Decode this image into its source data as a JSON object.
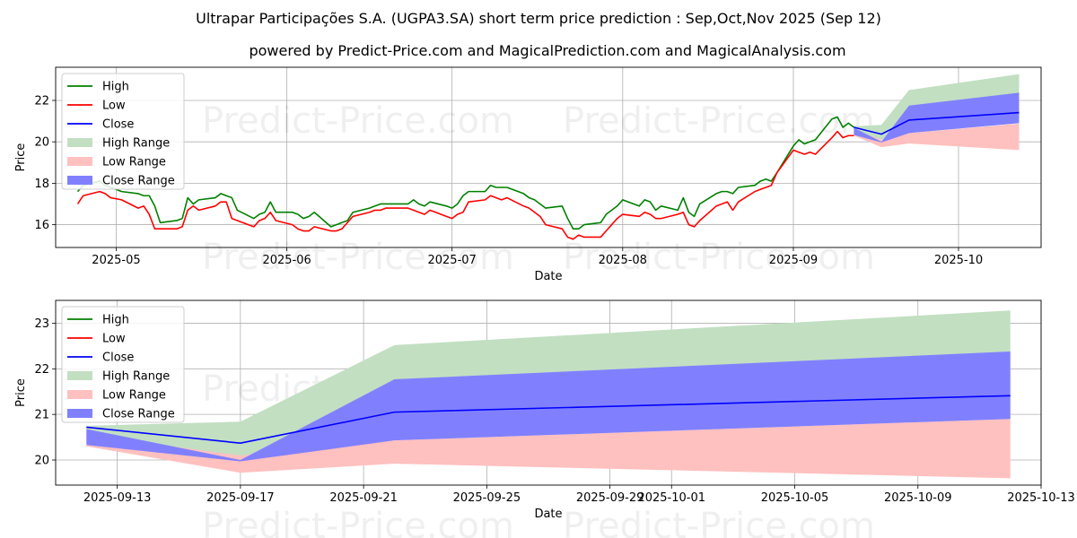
{
  "title": "Ultrapar Participações S.A. (UGPA3.SA) short term price prediction : Sep,Oct,Nov 2025 (Sep 12)",
  "subtitle": "powered by Predict-Price.com and MagicalPrediction.com and MagicalAnalysis.com",
  "watermark": "Predict-Price.com",
  "colors": {
    "high": "#008000",
    "low": "#ff0000",
    "close": "#0000ff",
    "high_range": "#c2dfc2",
    "low_range": "#ffc0c0",
    "close_range": "#8080ff",
    "grid": "#b0b0b0"
  },
  "chart_data": [
    {
      "type": "line",
      "xlabel": "Date",
      "ylabel": "Price",
      "x_type": "date",
      "xlim": [
        "2025-04-20",
        "2025-10-16"
      ],
      "ylim": [
        14.9,
        23.6
      ],
      "yticks": [
        16,
        18,
        20,
        22
      ],
      "xticks": [
        {
          "date": "2025-05-01",
          "label": "2025-05"
        },
        {
          "date": "2025-06-01",
          "label": "2025-06"
        },
        {
          "date": "2025-07-01",
          "label": "2025-07"
        },
        {
          "date": "2025-08-01",
          "label": "2025-08"
        },
        {
          "date": "2025-09-01",
          "label": "2025-09"
        },
        {
          "date": "2025-10-01",
          "label": "2025-10"
        }
      ],
      "grid": true,
      "legend": "upper left",
      "legend_labels": [
        "High",
        "Low",
        "Close",
        "High Range",
        "Low Range",
        "Close Range"
      ],
      "series": [
        {
          "name": "High",
          "x": [
            "2025-04-24",
            "2025-04-25",
            "2025-04-28",
            "2025-04-29",
            "2025-04-30",
            "2025-05-02",
            "2025-05-05",
            "2025-05-06",
            "2025-05-07",
            "2025-05-08",
            "2025-05-09",
            "2025-05-12",
            "2025-05-13",
            "2025-05-14",
            "2025-05-15",
            "2025-05-16",
            "2025-05-19",
            "2025-05-20",
            "2025-05-21",
            "2025-05-22",
            "2025-05-23",
            "2025-05-26",
            "2025-05-27",
            "2025-05-28",
            "2025-05-29",
            "2025-05-30",
            "2025-06-02",
            "2025-06-03",
            "2025-06-04",
            "2025-06-05",
            "2025-06-06",
            "2025-06-09",
            "2025-06-10",
            "2025-06-11",
            "2025-06-12",
            "2025-06-13",
            "2025-06-16",
            "2025-06-17",
            "2025-06-18",
            "2025-06-19",
            "2025-06-20",
            "2025-06-23",
            "2025-06-24",
            "2025-06-25",
            "2025-06-26",
            "2025-06-27",
            "2025-06-30",
            "2025-07-01",
            "2025-07-02",
            "2025-07-03",
            "2025-07-04",
            "2025-07-07",
            "2025-07-08",
            "2025-07-09",
            "2025-07-10",
            "2025-07-11",
            "2025-07-14",
            "2025-07-15",
            "2025-07-16",
            "2025-07-17",
            "2025-07-18",
            "2025-07-21",
            "2025-07-22",
            "2025-07-23",
            "2025-07-24",
            "2025-07-25",
            "2025-07-28",
            "2025-07-29",
            "2025-07-30",
            "2025-07-31",
            "2025-08-01",
            "2025-08-04",
            "2025-08-05",
            "2025-08-06",
            "2025-08-07",
            "2025-08-08",
            "2025-08-11",
            "2025-08-12",
            "2025-08-13",
            "2025-08-14",
            "2025-08-15",
            "2025-08-18",
            "2025-08-19",
            "2025-08-20",
            "2025-08-21",
            "2025-08-22",
            "2025-08-25",
            "2025-08-26",
            "2025-08-27",
            "2025-08-28",
            "2025-08-29",
            "2025-09-01",
            "2025-09-02",
            "2025-09-03",
            "2025-09-04",
            "2025-09-05",
            "2025-09-08",
            "2025-09-09",
            "2025-09-10",
            "2025-09-11",
            "2025-09-12"
          ],
          "values": [
            17.6,
            17.9,
            18.1,
            17.9,
            17.8,
            17.6,
            17.5,
            17.4,
            17.4,
            16.9,
            16.1,
            16.2,
            16.3,
            17.3,
            17.0,
            17.2,
            17.3,
            17.5,
            17.4,
            17.3,
            16.7,
            16.3,
            16.5,
            16.6,
            17.1,
            16.6,
            16.6,
            16.5,
            16.3,
            16.4,
            16.6,
            15.9,
            16.0,
            16.1,
            16.2,
            16.6,
            16.8,
            16.9,
            17.0,
            17.0,
            17.0,
            17.0,
            17.2,
            17.0,
            16.9,
            17.1,
            16.9,
            16.8,
            17.0,
            17.4,
            17.6,
            17.6,
            17.9,
            17.8,
            17.8,
            17.8,
            17.5,
            17.3,
            17.2,
            17.0,
            16.8,
            16.9,
            16.3,
            15.8,
            15.8,
            16.0,
            16.1,
            16.5,
            16.7,
            16.9,
            17.2,
            16.9,
            17.2,
            17.1,
            16.7,
            16.9,
            16.7,
            17.3,
            16.6,
            16.4,
            17.0,
            17.5,
            17.6,
            17.6,
            17.5,
            17.8,
            17.9,
            18.1,
            18.2,
            18.1,
            18.5,
            19.8,
            20.1,
            19.9,
            20.0,
            20.1,
            21.1,
            21.2,
            20.7,
            20.9,
            20.7
          ]
        },
        {
          "name": "Low",
          "x": [
            "2025-04-24",
            "2025-04-25",
            "2025-04-28",
            "2025-04-29",
            "2025-04-30",
            "2025-05-02",
            "2025-05-05",
            "2025-05-06",
            "2025-05-07",
            "2025-05-08",
            "2025-05-09",
            "2025-05-12",
            "2025-05-13",
            "2025-05-14",
            "2025-05-15",
            "2025-05-16",
            "2025-05-19",
            "2025-05-20",
            "2025-05-21",
            "2025-05-22",
            "2025-05-23",
            "2025-05-26",
            "2025-05-27",
            "2025-05-28",
            "2025-05-29",
            "2025-05-30",
            "2025-06-02",
            "2025-06-03",
            "2025-06-04",
            "2025-06-05",
            "2025-06-06",
            "2025-06-09",
            "2025-06-10",
            "2025-06-11",
            "2025-06-12",
            "2025-06-13",
            "2025-06-16",
            "2025-06-17",
            "2025-06-18",
            "2025-06-19",
            "2025-06-20",
            "2025-06-23",
            "2025-06-24",
            "2025-06-25",
            "2025-06-26",
            "2025-06-27",
            "2025-06-30",
            "2025-07-01",
            "2025-07-02",
            "2025-07-03",
            "2025-07-04",
            "2025-07-07",
            "2025-07-08",
            "2025-07-09",
            "2025-07-10",
            "2025-07-11",
            "2025-07-14",
            "2025-07-15",
            "2025-07-16",
            "2025-07-17",
            "2025-07-18",
            "2025-07-21",
            "2025-07-22",
            "2025-07-23",
            "2025-07-24",
            "2025-07-25",
            "2025-07-28",
            "2025-07-29",
            "2025-07-30",
            "2025-07-31",
            "2025-08-01",
            "2025-08-04",
            "2025-08-05",
            "2025-08-06",
            "2025-08-07",
            "2025-08-08",
            "2025-08-11",
            "2025-08-12",
            "2025-08-13",
            "2025-08-14",
            "2025-08-15",
            "2025-08-18",
            "2025-08-19",
            "2025-08-20",
            "2025-08-21",
            "2025-08-22",
            "2025-08-25",
            "2025-08-26",
            "2025-08-27",
            "2025-08-28",
            "2025-08-29",
            "2025-09-01",
            "2025-09-02",
            "2025-09-03",
            "2025-09-04",
            "2025-09-05",
            "2025-09-08",
            "2025-09-09",
            "2025-09-10",
            "2025-09-11",
            "2025-09-12"
          ],
          "values": [
            17.0,
            17.4,
            17.6,
            17.5,
            17.3,
            17.2,
            16.8,
            16.9,
            16.5,
            15.8,
            15.8,
            15.8,
            15.9,
            16.7,
            16.9,
            16.7,
            16.9,
            17.1,
            17.1,
            16.3,
            16.2,
            15.9,
            16.2,
            16.3,
            16.6,
            16.2,
            16.0,
            15.8,
            15.7,
            15.7,
            15.9,
            15.7,
            15.7,
            15.8,
            16.1,
            16.4,
            16.6,
            16.7,
            16.7,
            16.8,
            16.8,
            16.8,
            16.7,
            16.6,
            16.5,
            16.7,
            16.4,
            16.3,
            16.5,
            16.6,
            17.1,
            17.2,
            17.4,
            17.3,
            17.2,
            17.3,
            16.9,
            16.8,
            16.6,
            16.4,
            16.0,
            15.8,
            15.4,
            15.3,
            15.5,
            15.4,
            15.4,
            15.7,
            16.0,
            16.3,
            16.5,
            16.4,
            16.6,
            16.5,
            16.3,
            16.3,
            16.5,
            16.6,
            16.0,
            15.9,
            16.2,
            16.9,
            17.0,
            17.1,
            16.7,
            17.1,
            17.6,
            17.7,
            17.8,
            17.9,
            18.5,
            19.6,
            19.5,
            19.4,
            19.5,
            19.4,
            20.2,
            20.5,
            20.2,
            20.3,
            20.3
          ]
        },
        {
          "name": "Close",
          "x": [
            "2025-09-12",
            "2025-09-17",
            "2025-09-22",
            "2025-10-12"
          ],
          "values": [
            20.7,
            20.37,
            21.05,
            21.41
          ]
        }
      ],
      "ranges": [
        {
          "name": "High Range",
          "x": [
            "2025-09-12",
            "2025-09-17",
            "2025-09-22",
            "2025-10-12"
          ],
          "upper": [
            20.75,
            20.82,
            22.5,
            23.27
          ],
          "lower": [
            20.45,
            20.1,
            20.6,
            20.9
          ]
        },
        {
          "name": "Low Range",
          "x": [
            "2025-09-12",
            "2025-09-17",
            "2025-09-22",
            "2025-10-12"
          ],
          "upper": [
            20.55,
            20.1,
            20.42,
            20.88
          ],
          "lower": [
            20.3,
            19.74,
            19.92,
            19.6
          ]
        },
        {
          "name": "Close Range",
          "x": [
            "2025-09-12",
            "2025-09-17",
            "2025-09-22",
            "2025-10-12"
          ],
          "upper": [
            20.68,
            20.0,
            21.75,
            22.37
          ],
          "lower": [
            20.33,
            19.97,
            20.42,
            20.9
          ]
        }
      ]
    },
    {
      "type": "line",
      "xlabel": "Date",
      "ylabel": "Price",
      "x_type": "date",
      "xlim": [
        "2025-09-11",
        "2025-10-13"
      ],
      "ylim": [
        19.45,
        23.5
      ],
      "yticks": [
        20,
        21,
        22,
        23
      ],
      "xticks": [
        {
          "date": "2025-09-13",
          "label": "2025-09-13"
        },
        {
          "date": "2025-09-17",
          "label": "2025-09-17"
        },
        {
          "date": "2025-09-21",
          "label": "2025-09-21"
        },
        {
          "date": "2025-09-25",
          "label": "2025-09-25"
        },
        {
          "date": "2025-09-29",
          "label": "2025-09-29"
        },
        {
          "date": "2025-10-01",
          "label": "2025-10-01"
        },
        {
          "date": "2025-10-05",
          "label": "2025-10-05"
        },
        {
          "date": "2025-10-09",
          "label": "2025-10-09"
        },
        {
          "date": "2025-10-13",
          "label": "2025-10-13"
        }
      ],
      "grid": true,
      "legend": "upper left",
      "legend_labels": [
        "High",
        "Low",
        "Close",
        "High Range",
        "Low Range",
        "Close Range"
      ],
      "series": [
        {
          "name": "Close",
          "x": [
            "2025-09-12",
            "2025-09-17",
            "2025-09-22",
            "2025-10-12"
          ],
          "values": [
            20.72,
            20.37,
            21.05,
            21.41
          ]
        }
      ],
      "ranges": [
        {
          "name": "High Range",
          "x": [
            "2025-09-12",
            "2025-09-17",
            "2025-09-22",
            "2025-10-12"
          ],
          "upper": [
            20.75,
            20.84,
            22.52,
            23.28
          ],
          "lower": [
            20.45,
            20.0,
            20.6,
            20.9
          ]
        },
        {
          "name": "Low Range",
          "x": [
            "2025-09-12",
            "2025-09-17",
            "2025-09-22",
            "2025-10-12"
          ],
          "upper": [
            20.55,
            20.1,
            20.43,
            20.9
          ],
          "lower": [
            20.3,
            19.72,
            19.92,
            19.6
          ]
        },
        {
          "name": "Close Range",
          "x": [
            "2025-09-12",
            "2025-09-17",
            "2025-09-22",
            "2025-10-12"
          ],
          "upper": [
            20.68,
            20.0,
            21.77,
            22.38
          ],
          "lower": [
            20.33,
            19.97,
            20.43,
            20.9
          ]
        }
      ]
    }
  ]
}
